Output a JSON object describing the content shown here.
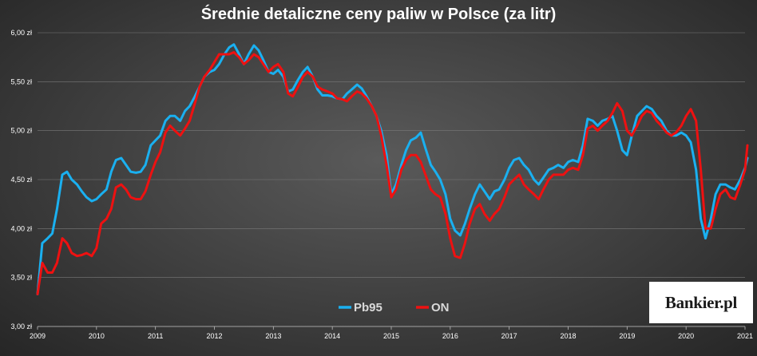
{
  "chart_data": {
    "type": "line",
    "title": "Średnie detaliczne ceny paliw w Polsce (za litr)",
    "xlabel": "",
    "ylabel": "",
    "x_ticks": [
      "2009",
      "2010",
      "2011",
      "2012",
      "2013",
      "2014",
      "2015",
      "2016",
      "2017",
      "2018",
      "2019",
      "2020",
      "2021"
    ],
    "y_ticks": [
      "3,00 zł",
      "3,50 zł",
      "4,00 zł",
      "4,50 zł",
      "5,00 zł",
      "5,50 zł",
      "6,00 zł"
    ],
    "xlim": [
      2009,
      2021
    ],
    "ylim": [
      3.0,
      6.0
    ],
    "grid": true,
    "legend_position": "bottom",
    "series": [
      {
        "name": "Pb95",
        "color": "#1ab0f0",
        "points": [
          [
            2009.0,
            3.33
          ],
          [
            2009.08,
            3.85
          ],
          [
            2009.17,
            3.9
          ],
          [
            2009.25,
            3.95
          ],
          [
            2009.33,
            4.2
          ],
          [
            2009.42,
            4.55
          ],
          [
            2009.5,
            4.58
          ],
          [
            2009.58,
            4.5
          ],
          [
            2009.67,
            4.45
          ],
          [
            2009.75,
            4.38
          ],
          [
            2009.83,
            4.32
          ],
          [
            2009.92,
            4.28
          ],
          [
            2010.0,
            4.3
          ],
          [
            2010.08,
            4.35
          ],
          [
            2010.17,
            4.4
          ],
          [
            2010.25,
            4.58
          ],
          [
            2010.33,
            4.7
          ],
          [
            2010.42,
            4.72
          ],
          [
            2010.5,
            4.65
          ],
          [
            2010.58,
            4.58
          ],
          [
            2010.67,
            4.57
          ],
          [
            2010.75,
            4.58
          ],
          [
            2010.83,
            4.65
          ],
          [
            2010.92,
            4.85
          ],
          [
            2011.0,
            4.9
          ],
          [
            2011.08,
            4.95
          ],
          [
            2011.17,
            5.1
          ],
          [
            2011.25,
            5.15
          ],
          [
            2011.33,
            5.15
          ],
          [
            2011.42,
            5.1
          ],
          [
            2011.5,
            5.2
          ],
          [
            2011.58,
            5.25
          ],
          [
            2011.67,
            5.35
          ],
          [
            2011.75,
            5.45
          ],
          [
            2011.83,
            5.55
          ],
          [
            2011.92,
            5.6
          ],
          [
            2012.0,
            5.62
          ],
          [
            2012.08,
            5.68
          ],
          [
            2012.17,
            5.78
          ],
          [
            2012.25,
            5.85
          ],
          [
            2012.33,
            5.88
          ],
          [
            2012.42,
            5.78
          ],
          [
            2012.5,
            5.68
          ],
          [
            2012.58,
            5.78
          ],
          [
            2012.67,
            5.87
          ],
          [
            2012.75,
            5.82
          ],
          [
            2012.83,
            5.72
          ],
          [
            2012.92,
            5.6
          ],
          [
            2013.0,
            5.58
          ],
          [
            2013.08,
            5.62
          ],
          [
            2013.17,
            5.55
          ],
          [
            2013.25,
            5.4
          ],
          [
            2013.33,
            5.42
          ],
          [
            2013.42,
            5.52
          ],
          [
            2013.5,
            5.6
          ],
          [
            2013.58,
            5.65
          ],
          [
            2013.67,
            5.55
          ],
          [
            2013.75,
            5.42
          ],
          [
            2013.83,
            5.36
          ],
          [
            2013.92,
            5.36
          ],
          [
            2014.0,
            5.35
          ],
          [
            2014.08,
            5.33
          ],
          [
            2014.17,
            5.32
          ],
          [
            2014.25,
            5.38
          ],
          [
            2014.33,
            5.42
          ],
          [
            2014.42,
            5.47
          ],
          [
            2014.5,
            5.43
          ],
          [
            2014.58,
            5.35
          ],
          [
            2014.67,
            5.25
          ],
          [
            2014.75,
            5.15
          ],
          [
            2014.83,
            5.0
          ],
          [
            2014.92,
            4.75
          ],
          [
            2015.0,
            4.35
          ],
          [
            2015.08,
            4.45
          ],
          [
            2015.17,
            4.65
          ],
          [
            2015.25,
            4.8
          ],
          [
            2015.33,
            4.9
          ],
          [
            2015.42,
            4.93
          ],
          [
            2015.5,
            4.98
          ],
          [
            2015.58,
            4.82
          ],
          [
            2015.67,
            4.65
          ],
          [
            2015.75,
            4.58
          ],
          [
            2015.83,
            4.5
          ],
          [
            2015.92,
            4.35
          ],
          [
            2016.0,
            4.1
          ],
          [
            2016.08,
            3.98
          ],
          [
            2016.17,
            3.93
          ],
          [
            2016.25,
            4.05
          ],
          [
            2016.33,
            4.2
          ],
          [
            2016.42,
            4.35
          ],
          [
            2016.5,
            4.45
          ],
          [
            2016.58,
            4.38
          ],
          [
            2016.67,
            4.3
          ],
          [
            2016.75,
            4.38
          ],
          [
            2016.83,
            4.4
          ],
          [
            2016.92,
            4.5
          ],
          [
            2017.0,
            4.62
          ],
          [
            2017.08,
            4.7
          ],
          [
            2017.17,
            4.72
          ],
          [
            2017.25,
            4.65
          ],
          [
            2017.33,
            4.6
          ],
          [
            2017.42,
            4.5
          ],
          [
            2017.5,
            4.45
          ],
          [
            2017.58,
            4.52
          ],
          [
            2017.67,
            4.6
          ],
          [
            2017.75,
            4.62
          ],
          [
            2017.83,
            4.65
          ],
          [
            2017.92,
            4.62
          ],
          [
            2018.0,
            4.68
          ],
          [
            2018.08,
            4.7
          ],
          [
            2018.17,
            4.68
          ],
          [
            2018.25,
            4.85
          ],
          [
            2018.33,
            5.12
          ],
          [
            2018.42,
            5.1
          ],
          [
            2018.5,
            5.05
          ],
          [
            2018.58,
            5.1
          ],
          [
            2018.67,
            5.12
          ],
          [
            2018.75,
            5.15
          ],
          [
            2018.83,
            5.0
          ],
          [
            2018.92,
            4.8
          ],
          [
            2019.0,
            4.75
          ],
          [
            2019.08,
            4.95
          ],
          [
            2019.17,
            5.15
          ],
          [
            2019.25,
            5.2
          ],
          [
            2019.33,
            5.25
          ],
          [
            2019.42,
            5.22
          ],
          [
            2019.5,
            5.15
          ],
          [
            2019.58,
            5.1
          ],
          [
            2019.67,
            5.0
          ],
          [
            2019.75,
            4.95
          ],
          [
            2019.83,
            4.95
          ],
          [
            2019.92,
            4.98
          ],
          [
            2020.0,
            4.95
          ],
          [
            2020.08,
            4.88
          ],
          [
            2020.17,
            4.6
          ],
          [
            2020.25,
            4.1
          ],
          [
            2020.33,
            3.9
          ],
          [
            2020.42,
            4.1
          ],
          [
            2020.5,
            4.35
          ],
          [
            2020.58,
            4.45
          ],
          [
            2020.67,
            4.45
          ],
          [
            2020.75,
            4.42
          ],
          [
            2020.83,
            4.4
          ],
          [
            2020.92,
            4.5
          ],
          [
            2021.0,
            4.62
          ],
          [
            2021.04,
            4.72
          ]
        ]
      },
      {
        "name": "ON",
        "color": "#ee1111",
        "points": [
          [
            2009.0,
            3.33
          ],
          [
            2009.08,
            3.65
          ],
          [
            2009.17,
            3.55
          ],
          [
            2009.25,
            3.55
          ],
          [
            2009.33,
            3.65
          ],
          [
            2009.42,
            3.9
          ],
          [
            2009.5,
            3.85
          ],
          [
            2009.58,
            3.75
          ],
          [
            2009.67,
            3.72
          ],
          [
            2009.75,
            3.73
          ],
          [
            2009.83,
            3.75
          ],
          [
            2009.92,
            3.72
          ],
          [
            2010.0,
            3.8
          ],
          [
            2010.08,
            4.05
          ],
          [
            2010.17,
            4.1
          ],
          [
            2010.25,
            4.2
          ],
          [
            2010.33,
            4.42
          ],
          [
            2010.42,
            4.45
          ],
          [
            2010.5,
            4.4
          ],
          [
            2010.58,
            4.32
          ],
          [
            2010.67,
            4.3
          ],
          [
            2010.75,
            4.3
          ],
          [
            2010.83,
            4.38
          ],
          [
            2010.92,
            4.55
          ],
          [
            2011.0,
            4.68
          ],
          [
            2011.08,
            4.78
          ],
          [
            2011.17,
            4.98
          ],
          [
            2011.25,
            5.05
          ],
          [
            2011.33,
            5.0
          ],
          [
            2011.42,
            4.95
          ],
          [
            2011.5,
            5.02
          ],
          [
            2011.58,
            5.1
          ],
          [
            2011.67,
            5.28
          ],
          [
            2011.75,
            5.45
          ],
          [
            2011.83,
            5.55
          ],
          [
            2011.92,
            5.62
          ],
          [
            2012.0,
            5.7
          ],
          [
            2012.08,
            5.78
          ],
          [
            2012.17,
            5.78
          ],
          [
            2012.25,
            5.78
          ],
          [
            2012.33,
            5.8
          ],
          [
            2012.42,
            5.75
          ],
          [
            2012.5,
            5.68
          ],
          [
            2012.58,
            5.72
          ],
          [
            2012.67,
            5.78
          ],
          [
            2012.75,
            5.75
          ],
          [
            2012.83,
            5.68
          ],
          [
            2012.92,
            5.6
          ],
          [
            2013.0,
            5.65
          ],
          [
            2013.08,
            5.68
          ],
          [
            2013.17,
            5.6
          ],
          [
            2013.25,
            5.38
          ],
          [
            2013.33,
            5.35
          ],
          [
            2013.42,
            5.45
          ],
          [
            2013.5,
            5.55
          ],
          [
            2013.58,
            5.6
          ],
          [
            2013.67,
            5.55
          ],
          [
            2013.75,
            5.45
          ],
          [
            2013.83,
            5.42
          ],
          [
            2013.92,
            5.4
          ],
          [
            2014.0,
            5.38
          ],
          [
            2014.08,
            5.33
          ],
          [
            2014.17,
            5.32
          ],
          [
            2014.25,
            5.3
          ],
          [
            2014.33,
            5.35
          ],
          [
            2014.42,
            5.4
          ],
          [
            2014.5,
            5.38
          ],
          [
            2014.58,
            5.33
          ],
          [
            2014.67,
            5.25
          ],
          [
            2014.75,
            5.15
          ],
          [
            2014.83,
            4.95
          ],
          [
            2014.92,
            4.65
          ],
          [
            2015.0,
            4.32
          ],
          [
            2015.08,
            4.4
          ],
          [
            2015.17,
            4.6
          ],
          [
            2015.25,
            4.7
          ],
          [
            2015.33,
            4.75
          ],
          [
            2015.42,
            4.75
          ],
          [
            2015.5,
            4.68
          ],
          [
            2015.58,
            4.55
          ],
          [
            2015.67,
            4.4
          ],
          [
            2015.75,
            4.35
          ],
          [
            2015.83,
            4.32
          ],
          [
            2015.92,
            4.15
          ],
          [
            2016.0,
            3.9
          ],
          [
            2016.08,
            3.72
          ],
          [
            2016.17,
            3.7
          ],
          [
            2016.25,
            3.85
          ],
          [
            2016.33,
            4.05
          ],
          [
            2016.42,
            4.2
          ],
          [
            2016.5,
            4.25
          ],
          [
            2016.58,
            4.15
          ],
          [
            2016.67,
            4.08
          ],
          [
            2016.75,
            4.15
          ],
          [
            2016.83,
            4.2
          ],
          [
            2016.92,
            4.32
          ],
          [
            2017.0,
            4.45
          ],
          [
            2017.08,
            4.5
          ],
          [
            2017.17,
            4.55
          ],
          [
            2017.25,
            4.45
          ],
          [
            2017.33,
            4.4
          ],
          [
            2017.42,
            4.35
          ],
          [
            2017.5,
            4.3
          ],
          [
            2017.58,
            4.4
          ],
          [
            2017.67,
            4.5
          ],
          [
            2017.75,
            4.55
          ],
          [
            2017.83,
            4.55
          ],
          [
            2017.92,
            4.55
          ],
          [
            2018.0,
            4.6
          ],
          [
            2018.08,
            4.62
          ],
          [
            2018.17,
            4.6
          ],
          [
            2018.25,
            4.75
          ],
          [
            2018.33,
            5.02
          ],
          [
            2018.42,
            5.05
          ],
          [
            2018.5,
            5.0
          ],
          [
            2018.58,
            5.05
          ],
          [
            2018.67,
            5.1
          ],
          [
            2018.75,
            5.18
          ],
          [
            2018.83,
            5.28
          ],
          [
            2018.92,
            5.2
          ],
          [
            2019.0,
            5.0
          ],
          [
            2019.08,
            4.95
          ],
          [
            2019.17,
            5.05
          ],
          [
            2019.25,
            5.15
          ],
          [
            2019.33,
            5.2
          ],
          [
            2019.42,
            5.18
          ],
          [
            2019.5,
            5.1
          ],
          [
            2019.58,
            5.05
          ],
          [
            2019.67,
            4.98
          ],
          [
            2019.75,
            4.95
          ],
          [
            2019.83,
            4.98
          ],
          [
            2019.92,
            5.05
          ],
          [
            2020.0,
            5.15
          ],
          [
            2020.08,
            5.22
          ],
          [
            2020.17,
            5.1
          ],
          [
            2020.25,
            4.6
          ],
          [
            2020.33,
            4.0
          ],
          [
            2020.42,
            4.0
          ],
          [
            2020.5,
            4.2
          ],
          [
            2020.58,
            4.35
          ],
          [
            2020.67,
            4.4
          ],
          [
            2020.75,
            4.32
          ],
          [
            2020.83,
            4.3
          ],
          [
            2020.92,
            4.45
          ],
          [
            2021.0,
            4.6
          ],
          [
            2021.04,
            4.85
          ]
        ]
      }
    ]
  },
  "logo": {
    "text": "Bankier.pl"
  }
}
